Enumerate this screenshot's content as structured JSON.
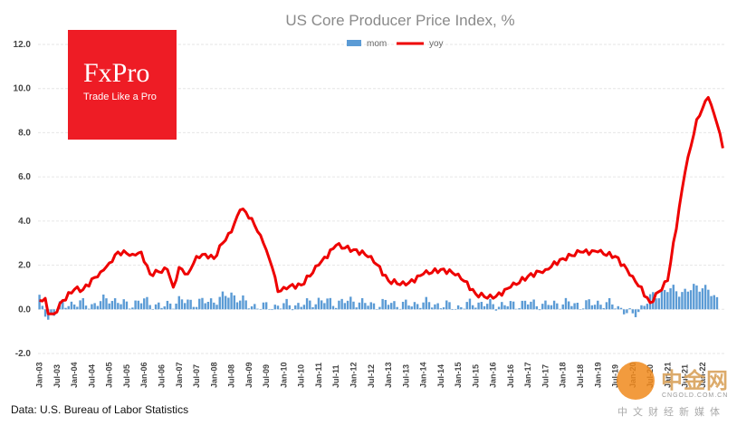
{
  "source_note": "Data: U.S. Bureau of Labor Statistics",
  "logo": {
    "name": "FxPro",
    "tagline": "Trade Like a Pro"
  },
  "watermark": {
    "big": "中金网",
    "url": "CNGOLD.COM.CN",
    "sub": "中文财经新媒体"
  },
  "chart_data": {
    "type": "line",
    "title": "US Core Producer Price Index, %",
    "legend_position": "top",
    "ylim": [
      -2.0,
      12.0
    ],
    "yticks": [
      "12.0",
      "10.0",
      "8.0",
      "6.0",
      "4.0",
      "2.0",
      "0.0",
      "-2.0"
    ],
    "xticks": [
      "Jan-03",
      "Jul-03",
      "Jan-04",
      "Jul-04",
      "Jan-05",
      "Jul-05",
      "Jan-06",
      "Jul-06",
      "Jan-07",
      "Jul-07",
      "Jan-08",
      "Jul-08",
      "Jan-09",
      "Jul-09",
      "Jan-10",
      "Jul-10",
      "Jan-11",
      "Jul-11",
      "Jan-12",
      "Jul-12",
      "Jan-13",
      "Jul-13",
      "Jan-14",
      "Jul-14",
      "Jan-15",
      "Jul-15",
      "Jan-16",
      "Jul-16",
      "Jan-17",
      "Jul-17",
      "Jan-18",
      "Jul-18",
      "Jan-19",
      "Jul-19",
      "Jan-20",
      "Jul-20",
      "Jan-21",
      "Jul-21",
      "Jan-22"
    ],
    "grid": true,
    "colors": {
      "mom": "#5b9bd5",
      "yoy": "#ee0000"
    },
    "series": [
      {
        "name": "mom",
        "kind": "bar",
        "start": "Jan-03",
        "frequency": "monthly",
        "anchors": [
          {
            "date": "Jan-03",
            "value": 0.4
          },
          {
            "date": "Apr-03",
            "value": -0.5
          },
          {
            "date": "Jul-03",
            "value": 0.1
          },
          {
            "date": "Jan-04",
            "value": 0.3
          },
          {
            "date": "Jul-04",
            "value": 0.2
          },
          {
            "date": "Jan-05",
            "value": 0.5
          },
          {
            "date": "Jul-05",
            "value": 0.2
          },
          {
            "date": "Jan-06",
            "value": 0.4
          },
          {
            "date": "Jul-06",
            "value": 0.1
          },
          {
            "date": "Jan-07",
            "value": 0.4
          },
          {
            "date": "Jul-07",
            "value": 0.3
          },
          {
            "date": "Jan-08",
            "value": 0.4
          },
          {
            "date": "Jul-08",
            "value": 0.7
          },
          {
            "date": "Jan-09",
            "value": 0.2
          },
          {
            "date": "Jul-09",
            "value": 0.1
          },
          {
            "date": "Jan-10",
            "value": 0.2
          },
          {
            "date": "Jul-10",
            "value": 0.2
          },
          {
            "date": "Jan-11",
            "value": 0.4
          },
          {
            "date": "Jul-11",
            "value": 0.3
          },
          {
            "date": "Jan-12",
            "value": 0.4
          },
          {
            "date": "Jul-12",
            "value": 0.2
          },
          {
            "date": "Jan-13",
            "value": 0.3
          },
          {
            "date": "Jul-13",
            "value": 0.2
          },
          {
            "date": "Jan-14",
            "value": 0.3
          },
          {
            "date": "Jul-14",
            "value": 0.2
          },
          {
            "date": "Jan-15",
            "value": 0.1
          },
          {
            "date": "Jul-15",
            "value": 0.3
          },
          {
            "date": "Jan-16",
            "value": 0.2
          },
          {
            "date": "Jul-16",
            "value": 0.2
          },
          {
            "date": "Jan-17",
            "value": 0.3
          },
          {
            "date": "Jul-17",
            "value": 0.2
          },
          {
            "date": "Jan-18",
            "value": 0.3
          },
          {
            "date": "Jul-18",
            "value": 0.2
          },
          {
            "date": "Jan-19",
            "value": 0.3
          },
          {
            "date": "Jul-19",
            "value": 0.2
          },
          {
            "date": "Jan-20",
            "value": -0.3
          },
          {
            "date": "Jul-20",
            "value": 0.5
          },
          {
            "date": "Jan-21",
            "value": 0.9
          },
          {
            "date": "Jul-21",
            "value": 0.8
          },
          {
            "date": "Jan-22",
            "value": 1.1
          },
          {
            "date": "Jun-22",
            "value": 0.4
          }
        ]
      },
      {
        "name": "yoy",
        "kind": "line",
        "points": [
          {
            "date": "Jan-03",
            "value": 0.4
          },
          {
            "date": "Mar-03",
            "value": 0.5
          },
          {
            "date": "Apr-03",
            "value": -0.2
          },
          {
            "date": "Jun-03",
            "value": -0.2
          },
          {
            "date": "Sep-03",
            "value": 0.4
          },
          {
            "date": "Jan-04",
            "value": 0.9
          },
          {
            "date": "Apr-04",
            "value": 0.9
          },
          {
            "date": "Oct-04",
            "value": 1.7
          },
          {
            "date": "Jan-05",
            "value": 2.1
          },
          {
            "date": "Apr-05",
            "value": 2.6
          },
          {
            "date": "Sep-05",
            "value": 2.5
          },
          {
            "date": "Dec-05",
            "value": 2.6
          },
          {
            "date": "Mar-06",
            "value": 1.6
          },
          {
            "date": "Jun-06",
            "value": 1.7
          },
          {
            "date": "Sep-06",
            "value": 1.8
          },
          {
            "date": "Nov-06",
            "value": 1.0
          },
          {
            "date": "Jan-07",
            "value": 1.9
          },
          {
            "date": "Apr-07",
            "value": 1.6
          },
          {
            "date": "Jul-07",
            "value": 2.4
          },
          {
            "date": "Oct-07",
            "value": 2.5
          },
          {
            "date": "Jan-08",
            "value": 2.3
          },
          {
            "date": "Apr-08",
            "value": 3.0
          },
          {
            "date": "Jul-08",
            "value": 3.5
          },
          {
            "date": "Oct-08",
            "value": 4.5
          },
          {
            "date": "Dec-08",
            "value": 4.4
          },
          {
            "date": "Mar-09",
            "value": 3.8
          },
          {
            "date": "Jun-09",
            "value": 3.0
          },
          {
            "date": "Sep-09",
            "value": 1.9
          },
          {
            "date": "Nov-09",
            "value": 0.8
          },
          {
            "date": "Jan-10",
            "value": 1.0
          },
          {
            "date": "Jul-10",
            "value": 1.1
          },
          {
            "date": "Jan-11",
            "value": 2.0
          },
          {
            "date": "Jul-11",
            "value": 2.9
          },
          {
            "date": "Jan-12",
            "value": 2.7
          },
          {
            "date": "Jul-12",
            "value": 2.4
          },
          {
            "date": "Jan-13",
            "value": 1.3
          },
          {
            "date": "Jul-13",
            "value": 1.1
          },
          {
            "date": "Jan-14",
            "value": 1.6
          },
          {
            "date": "Jul-14",
            "value": 1.8
          },
          {
            "date": "Jan-15",
            "value": 1.6
          },
          {
            "date": "Jul-15",
            "value": 0.7
          },
          {
            "date": "Jan-16",
            "value": 0.5
          },
          {
            "date": "Jul-16",
            "value": 1.0
          },
          {
            "date": "Jan-17",
            "value": 1.5
          },
          {
            "date": "Jul-17",
            "value": 1.8
          },
          {
            "date": "Jan-18",
            "value": 2.3
          },
          {
            "date": "Jul-18",
            "value": 2.6
          },
          {
            "date": "Jan-19",
            "value": 2.6
          },
          {
            "date": "Jul-19",
            "value": 2.4
          },
          {
            "date": "Jan-20",
            "value": 1.5
          },
          {
            "date": "Jul-20",
            "value": 0.3
          },
          {
            "date": "Jan-21",
            "value": 1.3
          },
          {
            "date": "Jul-21",
            "value": 6.2
          },
          {
            "date": "Nov-21",
            "value": 8.6
          },
          {
            "date": "Mar-22",
            "value": 9.6
          },
          {
            "date": "Jun-22",
            "value": 8.4
          },
          {
            "date": "Aug-22",
            "value": 7.3
          }
        ]
      }
    ]
  }
}
